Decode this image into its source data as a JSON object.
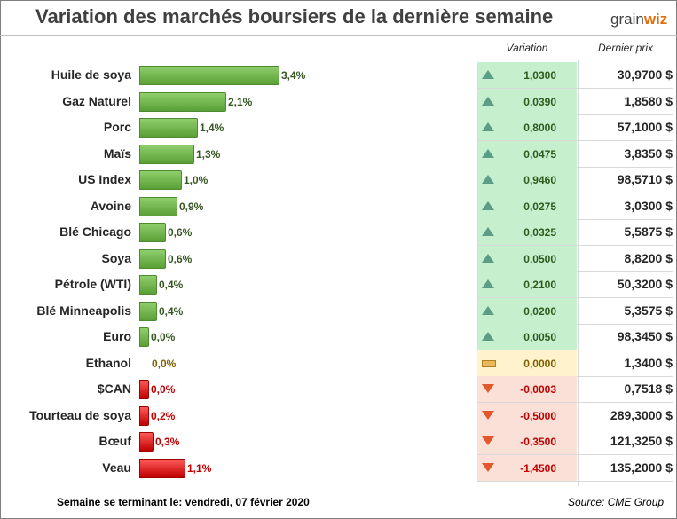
{
  "title": "Variation des marchés boursiers de la dernière semaine",
  "logo": {
    "part1": "grain",
    "part2": "wiz"
  },
  "columns": {
    "variation": "Variation",
    "last_price": "Dernier prix"
  },
  "footer": {
    "period": "Semaine se terminant le:  vendredi, 07 février 2020",
    "source": "Source: CME Group"
  },
  "colors": {
    "up": "#5a9f36",
    "down": "#c00000",
    "flat": "#7f6000"
  },
  "chart_data": {
    "type": "bar",
    "orientation": "horizontal",
    "categories": [
      "Huile de soya",
      "Gaz Naturel",
      "Porc",
      "Maïs",
      "US Index",
      "Avoine",
      "Blé Chicago",
      "Soya",
      "Pétrole (WTI)",
      "Blé Minneapolis",
      "Euro",
      "Ethanol",
      "$CAN",
      "Tourteau de soya",
      "Bœuf",
      "Veau"
    ],
    "values": [
      3.4,
      2.1,
      1.4,
      1.3,
      1.0,
      0.9,
      0.6,
      0.6,
      0.4,
      0.4,
      0.0,
      0.0,
      0.0,
      0.2,
      0.3,
      1.1
    ],
    "direction": [
      "up",
      "up",
      "up",
      "up",
      "up",
      "up",
      "up",
      "up",
      "up",
      "up",
      "up",
      "flat",
      "down",
      "down",
      "down",
      "down"
    ],
    "labels": [
      "3,4%",
      "2,1%",
      "1,4%",
      "1,3%",
      "1,0%",
      "0,9%",
      "0,6%",
      "0,6%",
      "0,4%",
      "0,4%",
      "0,0%",
      "0,0%",
      "0,0%",
      "0,2%",
      "0,3%",
      "1,1%"
    ],
    "variation": [
      "1,0300",
      "0,0390",
      "0,8000",
      "0,0475",
      "0,9460",
      "0,0275",
      "0,0325",
      "0,0500",
      "0,2100",
      "0,0200",
      "0,0050",
      "0,0000",
      "-0,0003",
      "-0,5000",
      "-0,3500",
      "-1,4500"
    ],
    "last_price": [
      "30,9700 $",
      "1,8580 $",
      "57,1000 $",
      "3,8350 $",
      "98,5710 $",
      "3,0300 $",
      "5,5875 $",
      "8,8200 $",
      "50,3200 $",
      "5,3575 $",
      "98,3450 $",
      "1,3400 $",
      "0,7518 $",
      "289,3000 $",
      "121,3250 $",
      "135,2000 $"
    ],
    "xlim": [
      0,
      3.4
    ]
  }
}
